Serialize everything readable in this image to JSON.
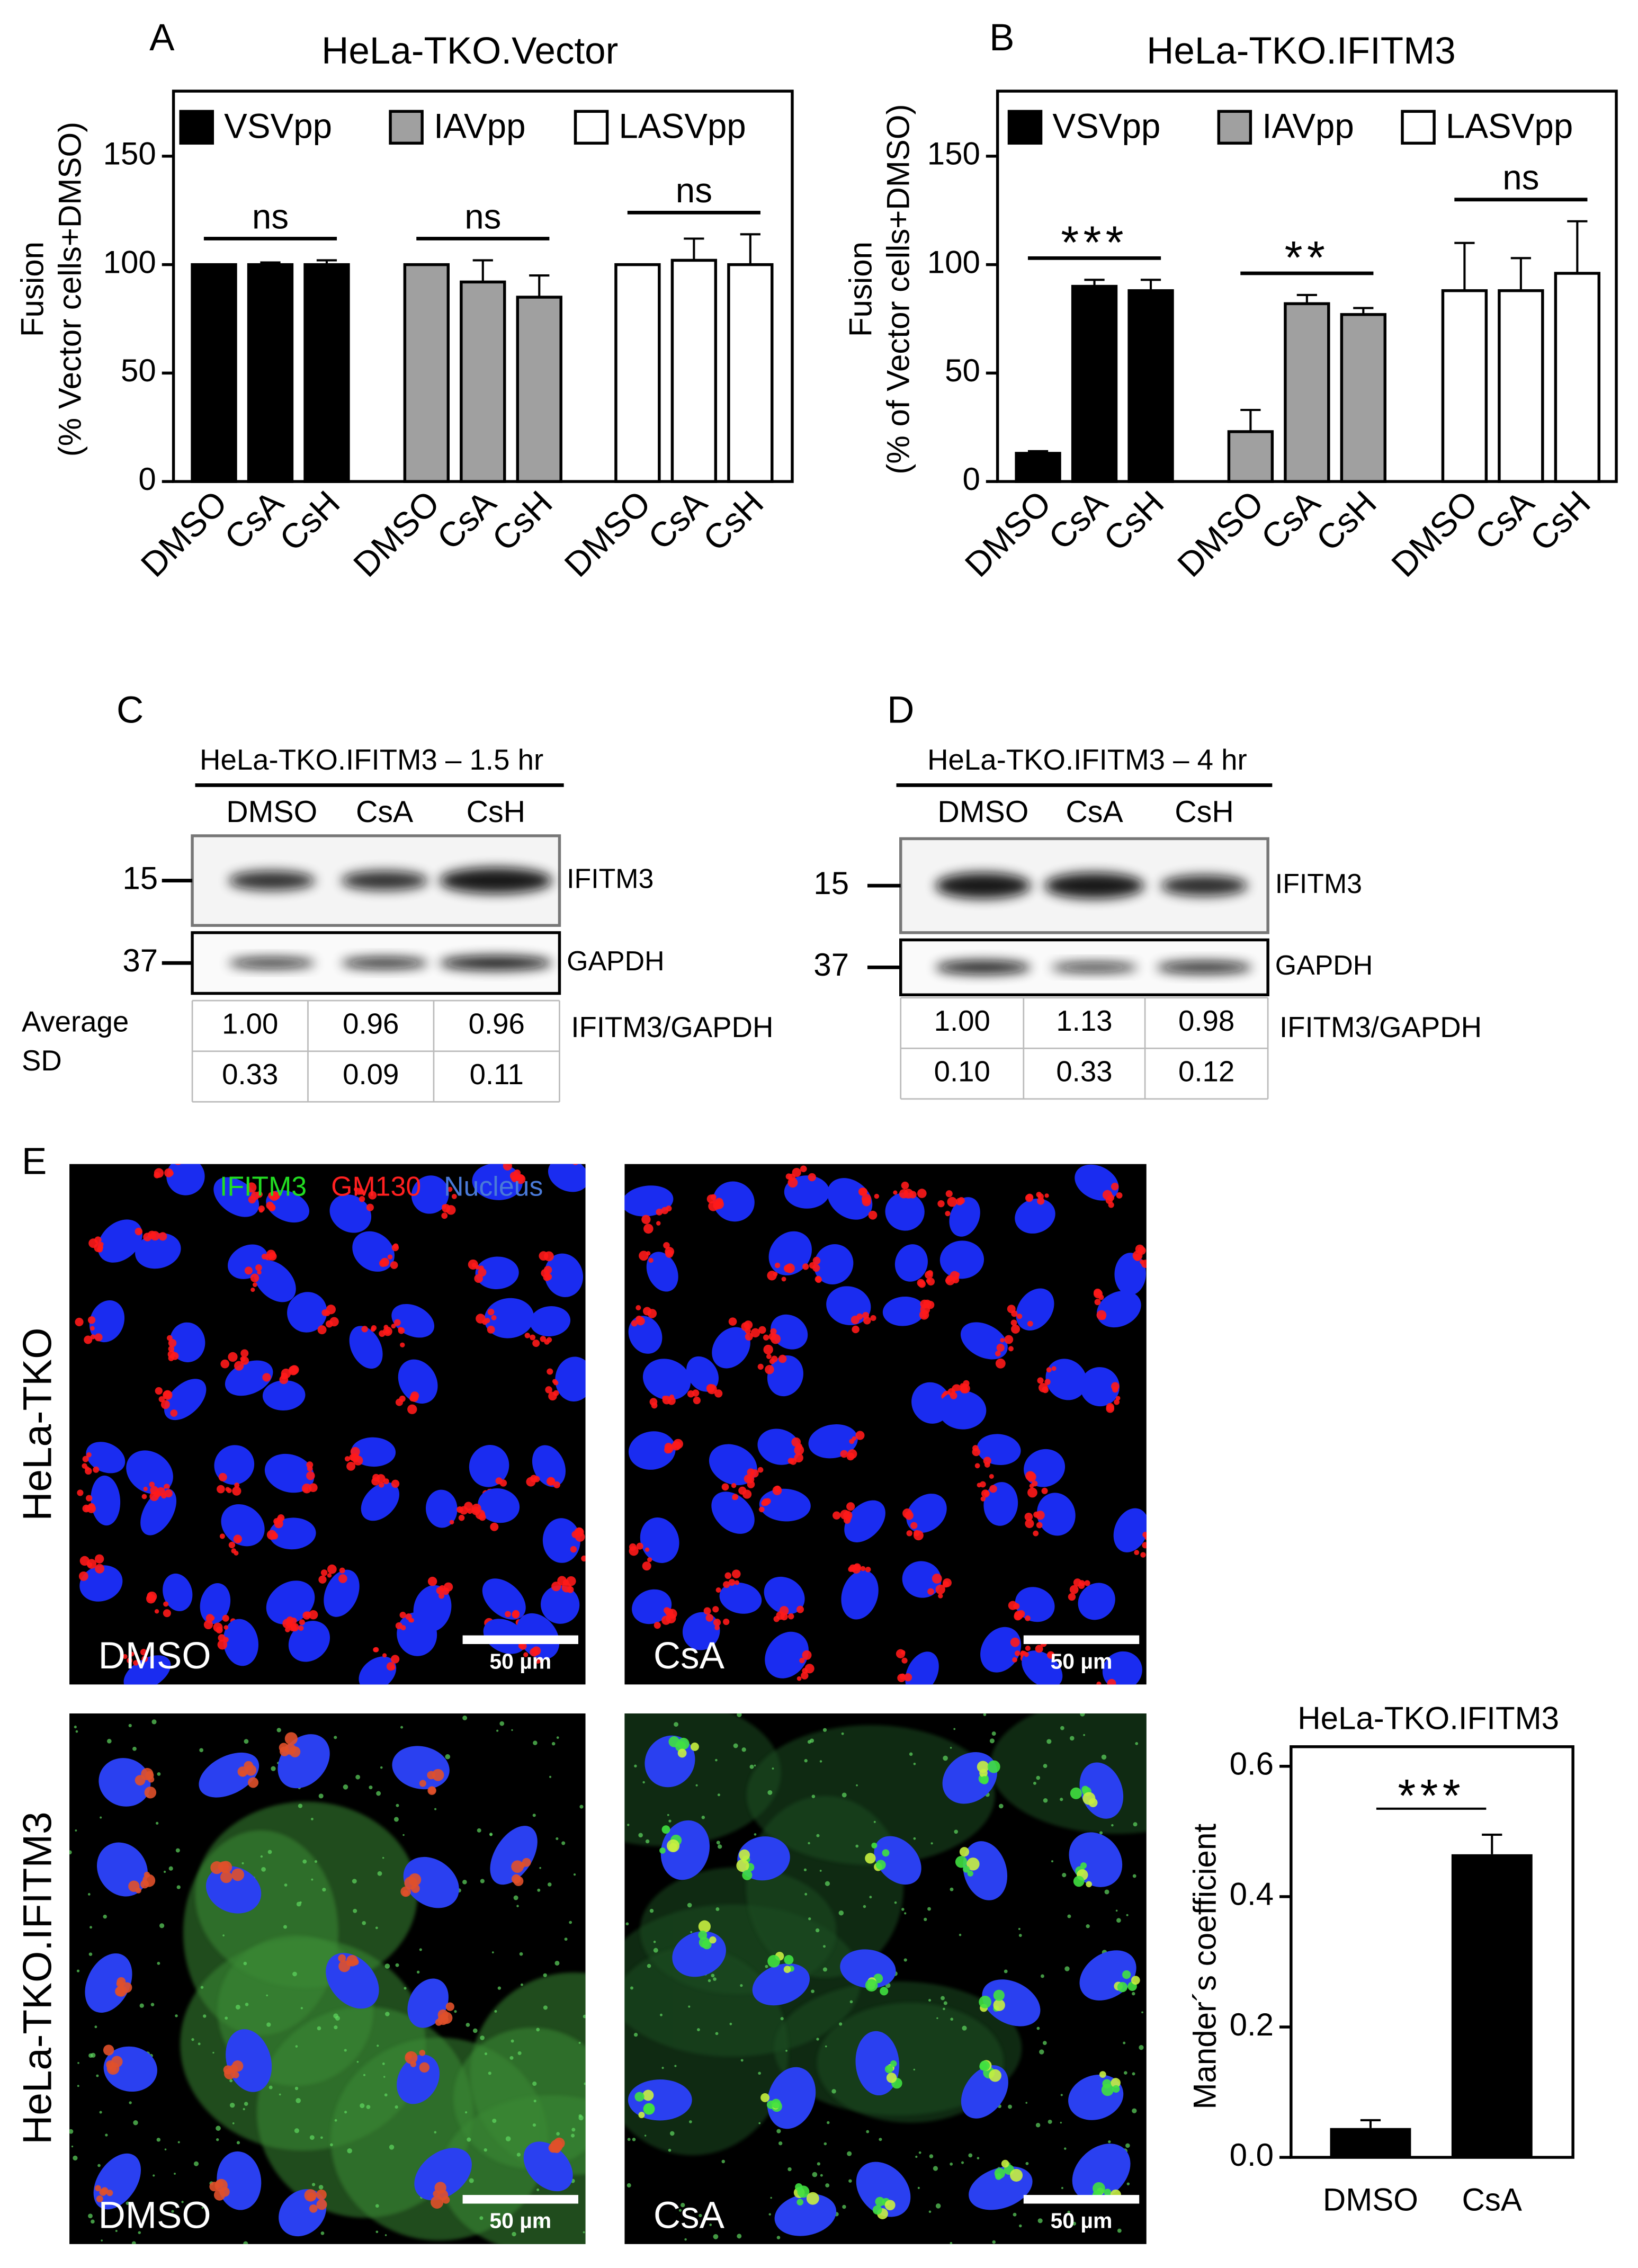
{
  "chart_data": [
    {
      "type": "bar",
      "panel": "A",
      "title": "HeLa-TKO.Vector",
      "ylabel": [
        "Fusion",
        "(% Vector cells+DMSO)"
      ],
      "categories": [
        "DMSO",
        "CsA",
        "CsH"
      ],
      "series": [
        {
          "name": "VSVpp",
          "color": "#000000",
          "values": [
            100,
            100,
            100
          ],
          "errors": [
            0,
            1,
            2
          ],
          "significance": "ns"
        },
        {
          "name": "IAVpp",
          "color": "#a0a0a0",
          "values": [
            100,
            92,
            85
          ],
          "errors": [
            0,
            10,
            10
          ],
          "significance": "ns"
        },
        {
          "name": "LASVpp",
          "color": "#ffffff",
          "values": [
            100,
            102,
            100
          ],
          "errors": [
            0,
            10,
            14
          ],
          "significance": "ns"
        }
      ],
      "ylim": [
        0,
        180
      ],
      "yticks": [
        0,
        50,
        100,
        150
      ]
    },
    {
      "type": "bar",
      "panel": "B",
      "title": "HeLa-TKO.IFITM3",
      "ylabel": [
        "Fusion",
        "(% of Vector cells+DMSO)"
      ],
      "categories": [
        "DMSO",
        "CsA",
        "CsH"
      ],
      "series": [
        {
          "name": "VSVpp",
          "color": "#000000",
          "values": [
            13,
            90,
            88
          ],
          "errors": [
            1,
            3,
            5
          ],
          "significance": "***"
        },
        {
          "name": "IAVpp",
          "color": "#a0a0a0",
          "values": [
            23,
            82,
            77
          ],
          "errors": [
            10,
            4,
            3
          ],
          "significance": "**"
        },
        {
          "name": "LASVpp",
          "color": "#ffffff",
          "values": [
            88,
            88,
            96
          ],
          "errors": [
            22,
            15,
            24
          ],
          "significance": "ns"
        }
      ],
      "ylim": [
        0,
        180
      ],
      "yticks": [
        0,
        50,
        100,
        150
      ]
    },
    {
      "type": "bar",
      "title": "HeLa-TKO.IFITM3",
      "ylabel": "Mander´s coefficient",
      "categories": [
        "DMSO",
        "CsA"
      ],
      "values": [
        0.045,
        0.465
      ],
      "errors": [
        0.012,
        0.03
      ],
      "color": "#000000",
      "significance": "***",
      "ylim": [
        0,
        0.63
      ],
      "yticks": [
        {
          "value": 0,
          "label": "0.0"
        },
        0.2,
        0.4,
        0.6
      ]
    }
  ],
  "blots": [
    {
      "panel": "C",
      "title": "HeLa-TKO.IFITM3 – 1.5 hr",
      "lanes": [
        "DMSO",
        "CsA",
        "CsH"
      ],
      "markers": [
        {
          "size": "15",
          "protein": "IFITM3"
        },
        {
          "size": "37",
          "protein": "GAPDH"
        }
      ],
      "row_labels": [
        "Average",
        "SD"
      ],
      "ratio_label": "IFITM3/GAPDH",
      "rows": [
        [
          "1.00",
          "0.96",
          "0.96"
        ],
        [
          "0.33",
          "0.09",
          "0.11"
        ]
      ]
    },
    {
      "panel": "D",
      "title": "HeLa-TKO.IFITM3 – 4 hr",
      "lanes": [
        "DMSO",
        "CsA",
        "CsH"
      ],
      "markers": [
        {
          "size": "15",
          "protein": "IFITM3"
        },
        {
          "size": "37",
          "protein": "GAPDH"
        }
      ],
      "ratio_label": "IFITM3/GAPDH",
      "rows": [
        [
          "1.00",
          "1.13",
          "0.98"
        ],
        [
          "0.10",
          "0.33",
          "0.12"
        ]
      ]
    }
  ],
  "microscopy": {
    "panel": "E",
    "channels": [
      {
        "name": "IFITM3",
        "color": "#22dd22"
      },
      {
        "name": "GM130",
        "color": "#ff2020"
      },
      {
        "name": "Nucleus",
        "color": "#4a7ad8"
      }
    ],
    "rows": [
      "HeLa-TKO",
      "HeLa-TKO.IFITM3"
    ],
    "columns": [
      "DMSO",
      "CsA"
    ],
    "scale_bar": "50 µm"
  }
}
